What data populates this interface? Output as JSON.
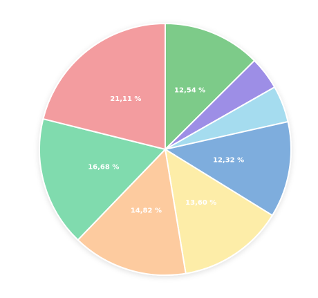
{
  "chart_data": {
    "type": "pie",
    "values": [
      12.54,
      4.23,
      4.7,
      12.32,
      13.6,
      14.82,
      16.68,
      21.11
    ],
    "value_labels": [
      "12,54 %",
      null,
      null,
      "12,32 %",
      "13,60 %",
      "14,82 %",
      "16,68 %",
      "21,11 %"
    ],
    "colors": [
      "#7dcb89",
      "#9d8ee6",
      "#a5dcef",
      "#7eaddd",
      "#fdeda8",
      "#fdcb9f",
      "#80dbae",
      "#f39c9f"
    ]
  }
}
